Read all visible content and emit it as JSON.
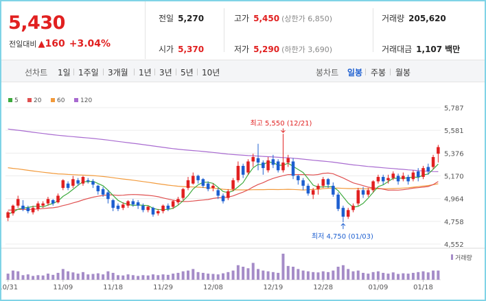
{
  "quote": {
    "price": "5,430",
    "change_label": "전일대비",
    "change_value": "160",
    "change_pct": "+3.04%"
  },
  "stats": {
    "prev_close": {
      "label": "전일",
      "value": "5,270"
    },
    "open": {
      "label": "시가",
      "value": "5,370"
    },
    "high": {
      "label": "고가",
      "value": "5,450",
      "sub": "(상한가 6,850)"
    },
    "low": {
      "label": "저가",
      "value": "5,290",
      "sub": "(하한가 3,690)"
    },
    "volume": {
      "label": "거래량",
      "value": "205,620"
    },
    "amount": {
      "label": "거래대금",
      "value": "1,107",
      "unit": "백만"
    }
  },
  "toolbar": {
    "line_label": "선차트",
    "periods": [
      "1일",
      "1주일",
      "3개월",
      "1년",
      "3년",
      "5년",
      "10년"
    ],
    "candle_label": "봉차트",
    "candle_tabs": [
      "일봉",
      "주봉",
      "월봉"
    ],
    "active_candle": "일봉"
  },
  "colors": {
    "up": "#e12020",
    "down": "#1d5fd0",
    "ma5": "#3daa3d",
    "ma20": "#e05050",
    "ma60": "#f29a3b",
    "ma120": "#a86ad0",
    "volume": "#a58cc8"
  },
  "chart_data": {
    "type": "candlestick",
    "legend": [
      {
        "name": "5",
        "color": "#3daa3d"
      },
      {
        "name": "20",
        "color": "#e05050"
      },
      {
        "name": "60",
        "color": "#f29a3b"
      },
      {
        "name": "120",
        "color": "#a86ad0"
      }
    ],
    "ylim": [
      4552,
      5787
    ],
    "yticks": [
      "5,787",
      "5,581",
      "5,376",
      "5,170",
      "4,964",
      "4,758",
      "4,552"
    ],
    "xticks": [
      "10/31",
      "11/09",
      "11/18",
      "11/29",
      "12/08",
      "12/19",
      "12/28",
      "01/09",
      "01/18"
    ],
    "annotations": {
      "high": "최고 5,550 (12/21)",
      "low": "최저 4,750 (01/03)"
    },
    "volume_label": "거래량",
    "candles": [
      [
        4790,
        4840,
        4760,
        4850
      ],
      [
        4830,
        4900,
        4810,
        4910
      ],
      [
        4900,
        4960,
        4880,
        4990
      ],
      [
        4900,
        4870,
        4850,
        4950
      ],
      [
        4880,
        4850,
        4830,
        4900
      ],
      [
        4840,
        4880,
        4820,
        4900
      ],
      [
        4870,
        4920,
        4850,
        4940
      ],
      [
        4900,
        4920,
        4880,
        4940
      ],
      [
        4920,
        4960,
        4900,
        4980
      ],
      [
        4950,
        4920,
        4900,
        4960
      ],
      [
        4930,
        4990,
        4920,
        5010
      ],
      [
        5060,
        5130,
        5040,
        5140
      ],
      [
        5100,
        5060,
        5040,
        5120
      ],
      [
        5080,
        5140,
        5060,
        5170
      ],
      [
        5130,
        5100,
        5080,
        5150
      ],
      [
        5100,
        5160,
        5080,
        5170
      ],
      [
        5130,
        5120,
        5100,
        5150
      ],
      [
        5120,
        5090,
        5060,
        5140
      ],
      [
        5080,
        5030,
        5000,
        5090
      ],
      [
        5050,
        5000,
        4980,
        5070
      ],
      [
        5020,
        4960,
        4920,
        5040
      ],
      [
        4950,
        4880,
        4850,
        4960
      ],
      [
        4900,
        4870,
        4850,
        4920
      ],
      [
        4880,
        4910,
        4860,
        4930
      ],
      [
        4900,
        4940,
        4880,
        4950
      ],
      [
        4940,
        4910,
        4890,
        4960
      ],
      [
        4930,
        4900,
        4870,
        4950
      ],
      [
        4900,
        4860,
        4840,
        4920
      ],
      [
        4860,
        4890,
        4840,
        4900
      ],
      [
        4880,
        4820,
        4800,
        4890
      ],
      [
        4830,
        4850,
        4810,
        4870
      ],
      [
        4850,
        4900,
        4830,
        4910
      ],
      [
        4900,
        4870,
        4850,
        4920
      ],
      [
        4890,
        4940,
        4870,
        4950
      ],
      [
        4930,
        4960,
        4910,
        4980
      ],
      [
        4970,
        5050,
        4950,
        5060
      ],
      [
        5060,
        5130,
        5040,
        5160
      ],
      [
        5100,
        5170,
        5090,
        5200
      ],
      [
        5170,
        5130,
        5100,
        5180
      ],
      [
        5140,
        5080,
        5060,
        5150
      ],
      [
        5100,
        5050,
        5030,
        5120
      ],
      [
        5060,
        5080,
        5030,
        5100
      ],
      [
        5040,
        4990,
        4960,
        5060
      ],
      [
        4990,
        4940,
        4920,
        5010
      ],
      [
        4970,
        5030,
        4950,
        5050
      ],
      [
        5050,
        5130,
        5030,
        5150
      ],
      [
        5130,
        5260,
        5110,
        5300
      ],
      [
        5260,
        5180,
        5150,
        5280
      ],
      [
        5200,
        5300,
        5180,
        5320
      ],
      [
        5300,
        5340,
        5250,
        5370
      ],
      [
        5330,
        5290,
        5220,
        5460
      ],
      [
        5290,
        5240,
        5180,
        5310
      ],
      [
        5220,
        5310,
        5200,
        5340
      ],
      [
        5320,
        5270,
        5240,
        5360
      ],
      [
        5300,
        5220,
        5200,
        5320
      ],
      [
        5220,
        5290,
        5200,
        5550
      ],
      [
        5290,
        5330,
        5250,
        5360
      ],
      [
        5300,
        5170,
        5140,
        5330
      ],
      [
        5170,
        5130,
        5090,
        5180
      ],
      [
        5130,
        5080,
        5040,
        5150
      ],
      [
        5080,
        5010,
        4990,
        5100
      ],
      [
        5000,
        5040,
        4960,
        5060
      ],
      [
        5050,
        5080,
        5000,
        5100
      ],
      [
        5080,
        5140,
        5060,
        5160
      ],
      [
        5140,
        5090,
        5060,
        5150
      ],
      [
        5080,
        5000,
        4980,
        5110
      ],
      [
        5000,
        4870,
        4850,
        5020
      ],
      [
        4880,
        4800,
        4750,
        4900
      ],
      [
        4800,
        4860,
        4780,
        4880
      ],
      [
        4860,
        4900,
        4840,
        4920
      ],
      [
        4920,
        5040,
        4900,
        5060
      ],
      [
        5040,
        5000,
        4970,
        5070
      ],
      [
        5000,
        5040,
        4980,
        5060
      ],
      [
        5040,
        5120,
        5020,
        5130
      ],
      [
        5120,
        5160,
        5100,
        5180
      ],
      [
        5160,
        5120,
        5090,
        5180
      ],
      [
        5130,
        5150,
        5100,
        5180
      ],
      [
        5150,
        5190,
        5130,
        5210
      ],
      [
        5170,
        5120,
        5090,
        5190
      ],
      [
        5140,
        5170,
        5120,
        5200
      ],
      [
        5160,
        5120,
        5090,
        5180
      ],
      [
        5140,
        5200,
        5120,
        5220
      ],
      [
        5210,
        5160,
        5120,
        5240
      ],
      [
        5160,
        5240,
        5140,
        5260
      ],
      [
        5250,
        5210,
        5180,
        5280
      ],
      [
        5250,
        5340,
        5230,
        5360
      ],
      [
        5370,
        5430,
        5290,
        5450
      ]
    ],
    "volumes": [
      40,
      60,
      55,
      30,
      35,
      25,
      30,
      28,
      40,
      32,
      45,
      70,
      55,
      48,
      40,
      50,
      35,
      38,
      42,
      35,
      55,
      45,
      30,
      28,
      35,
      30,
      25,
      30,
      28,
      35,
      30,
      35,
      32,
      40,
      45,
      55,
      60,
      70,
      50,
      45,
      40,
      38,
      35,
      42,
      50,
      60,
      95,
      85,
      75,
      110,
      70,
      60,
      55,
      50,
      45,
      170,
      90,
      85,
      70,
      60,
      55,
      50,
      48,
      55,
      50,
      60,
      85,
      95,
      70,
      55,
      60,
      45,
      40,
      50,
      55,
      45,
      40,
      48,
      38,
      42,
      40,
      45,
      50,
      55,
      48,
      60,
      60
    ]
  }
}
